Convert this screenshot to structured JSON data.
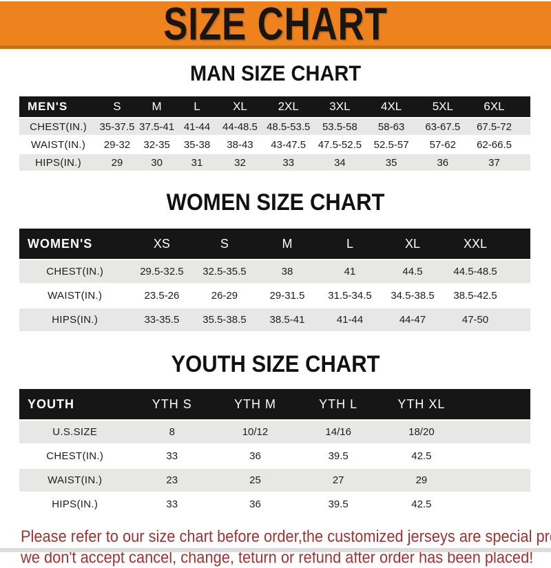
{
  "banner": {
    "title": "SIZE CHART"
  },
  "sections": [
    {
      "heading": "MAN SIZE CHART",
      "header_label": "MEN'S",
      "columns": [
        "S",
        "M",
        "L",
        "XL",
        "2XL",
        "3XL",
        "4XL",
        "5XL",
        "6XL"
      ],
      "rows": [
        {
          "label": "CHEST(IN.)",
          "values": [
            "35-37.5",
            "37.5-41",
            "41-44",
            "44-48.5",
            "48.5-53.5",
            "53.5-58",
            "58-63",
            "63-67.5",
            "67.5-72"
          ]
        },
        {
          "label": "WAIST(IN.)",
          "values": [
            "29-32",
            "32-35",
            "35-38",
            "38-43",
            "43-47.5",
            "47.5-52.5",
            "52.5-57",
            "57-62",
            "62-66.5"
          ]
        },
        {
          "label": "HIPS(IN.)",
          "values": [
            "29",
            "30",
            "31",
            "32",
            "33",
            "34",
            "35",
            "36",
            "37"
          ]
        }
      ]
    },
    {
      "heading": "WOMEN SIZE CHART",
      "header_label": "WOMEN'S",
      "columns": [
        "XS",
        "S",
        "M",
        "L",
        "XL",
        "XXL"
      ],
      "rows": [
        {
          "label": "CHEST(IN.)",
          "values": [
            "29.5-32.5",
            "32.5-35.5",
            "38",
            "41",
            "44.5",
            "44.5-48.5"
          ]
        },
        {
          "label": "WAIST(IN.)",
          "values": [
            "23.5-26",
            "26-29",
            "29-31.5",
            "31.5-34.5",
            "34.5-38.5",
            "38.5-42.5"
          ]
        },
        {
          "label": "HIPS(IN.)",
          "values": [
            "33-35.5",
            "35.5-38.5",
            "38.5-41",
            "41-44",
            "44-47",
            "47-50"
          ]
        }
      ]
    },
    {
      "heading": "YOUTH SIZE CHART",
      "header_label": "YOUTH",
      "columns": [
        "YTH S",
        "YTH M",
        "YTH L",
        "YTH XL"
      ],
      "rows": [
        {
          "label": "U.S.SIZE",
          "values": [
            "8",
            "10/12",
            "14/16",
            "18/20"
          ]
        },
        {
          "label": "CHEST(IN.)",
          "values": [
            "33",
            "36",
            "39.5",
            "42.5"
          ]
        },
        {
          "label": "WAIST(IN.)",
          "values": [
            "23",
            "25",
            "27",
            "29"
          ]
        },
        {
          "label": "HIPS(IN.)",
          "values": [
            "33",
            "36",
            "39.5",
            "42.5"
          ]
        }
      ]
    }
  ],
  "footer": {
    "line1": "Please refer to our size chart before order,the customized jerseys are special products,",
    "line2": "we don't accept cancel, change, teturn or refund after order has been placed!"
  },
  "colors": {
    "banner-bg": "#EE831E",
    "banner-border": "#C86F12",
    "band-bg": "#161616",
    "band-text": "#FFFFFF",
    "row-alt-bg": "#E7E7E6",
    "footer-text": "#A13232"
  }
}
